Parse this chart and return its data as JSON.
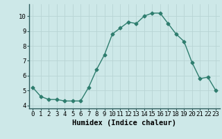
{
  "x": [
    0,
    1,
    2,
    3,
    4,
    5,
    6,
    7,
    8,
    9,
    10,
    11,
    12,
    13,
    14,
    15,
    16,
    17,
    18,
    19,
    20,
    21,
    22,
    23
  ],
  "y": [
    5.2,
    4.6,
    4.4,
    4.4,
    4.3,
    4.3,
    4.3,
    5.2,
    6.4,
    7.4,
    8.8,
    9.2,
    9.6,
    9.5,
    10.0,
    10.2,
    10.2,
    9.5,
    8.8,
    8.3,
    6.9,
    5.8,
    5.9,
    5.0
  ],
  "line_color": "#2e7d6e",
  "marker": "D",
  "marker_size": 2.5,
  "line_width": 1.0,
  "bg_color": "#cde8e8",
  "grid_color": "#b8d4d4",
  "xlabel": "Humidex (Indice chaleur)",
  "xlabel_fontsize": 7.5,
  "xlim": [
    -0.5,
    23.5
  ],
  "ylim": [
    3.8,
    10.8
  ],
  "yticks": [
    4,
    5,
    6,
    7,
    8,
    9,
    10
  ],
  "xtick_labels": [
    "0",
    "1",
    "2",
    "3",
    "4",
    "5",
    "6",
    "7",
    "8",
    "9",
    "10",
    "11",
    "12",
    "13",
    "14",
    "15",
    "16",
    "17",
    "18",
    "19",
    "20",
    "21",
    "22",
    "23"
  ],
  "tick_fontsize": 6.5,
  "axis_color": "#2e7d6e"
}
